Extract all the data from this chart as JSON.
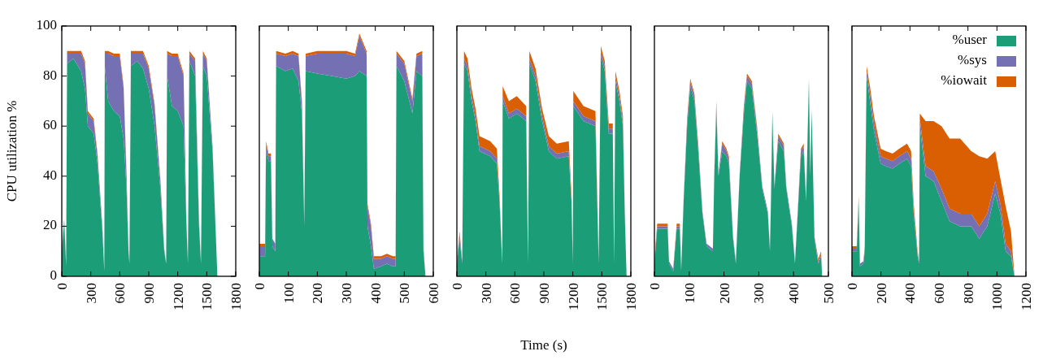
{
  "chart_data": [
    {
      "type": "area",
      "stacked": true,
      "ylabel": "CPU utilization %",
      "xlim": [
        0,
        1800
      ],
      "xticks": [
        0,
        300,
        600,
        900,
        1200,
        1500,
        1800
      ],
      "ylim": [
        0,
        100
      ],
      "yticks": [
        0,
        20,
        40,
        60,
        80,
        100
      ],
      "grid": false,
      "x": [
        0,
        25,
        45,
        55,
        120,
        200,
        240,
        270,
        330,
        370,
        420,
        440,
        445,
        480,
        540,
        600,
        640,
        670,
        690,
        700,
        715,
        780,
        840,
        900,
        960,
        1020,
        1060,
        1080,
        1090,
        1140,
        1200,
        1260,
        1290,
        1305,
        1320,
        1380,
        1420,
        1440,
        1460,
        1500,
        1560,
        1590,
        1610
      ],
      "series": [
        {
          "color": "#1b9e77",
          "values": [
            10,
            22,
            4,
            85,
            87,
            82,
            75,
            60,
            57,
            45,
            18,
            2,
            84,
            70,
            66,
            64,
            55,
            35,
            10,
            5,
            84,
            86,
            83,
            75,
            60,
            35,
            10,
            5,
            80,
            68,
            66,
            60,
            20,
            5,
            86,
            80,
            20,
            5,
            84,
            80,
            50,
            20,
            0
          ]
        },
        {
          "color": "#7570b3",
          "values": [
            1,
            1,
            1,
            4,
            2,
            7,
            10,
            5,
            5,
            3,
            2,
            0,
            5,
            19,
            22,
            24,
            20,
            5,
            1,
            0,
            5,
            3,
            6,
            8,
            8,
            3,
            1,
            0,
            9,
            20,
            22,
            20,
            2,
            0,
            3,
            6,
            2,
            0,
            5,
            6,
            2,
            1,
            0
          ]
        },
        {
          "color": "#d95f02",
          "values": [
            0,
            0,
            0,
            1,
            1,
            1,
            1,
            1,
            1,
            1,
            0,
            0,
            1,
            1,
            1,
            1,
            1,
            1,
            0,
            0,
            1,
            1,
            1,
            1,
            1,
            1,
            0,
            0,
            1,
            1,
            1,
            1,
            0,
            0,
            1,
            1,
            1,
            0,
            1,
            1,
            0,
            0,
            0
          ]
        }
      ]
    },
    {
      "type": "area",
      "stacked": true,
      "xlim": [
        0,
        600
      ],
      "xticks": [
        0,
        100,
        200,
        300,
        400,
        500,
        600
      ],
      "ylim": [
        0,
        100
      ],
      "tick_labels": "x",
      "grid": false,
      "x": [
        0,
        20,
        23,
        32,
        40,
        45,
        55,
        58,
        90,
        115,
        135,
        147,
        155,
        160,
        200,
        250,
        300,
        330,
        345,
        370,
        373,
        385,
        395,
        420,
        440,
        460,
        470,
        473,
        500,
        528,
        542,
        562,
        566,
        573
      ],
      "series": [
        {
          "color": "#1b9e77",
          "values": [
            8,
            8,
            50,
            46,
            46,
            12,
            10,
            84,
            82,
            83,
            78,
            65,
            20,
            82,
            81,
            80,
            79,
            80,
            82,
            80,
            20,
            12,
            3,
            4,
            5,
            4,
            4,
            84,
            78,
            65,
            82,
            80,
            10,
            0
          ]
        },
        {
          "color": "#7570b3",
          "values": [
            4,
            4,
            3,
            2,
            2,
            3,
            3,
            5,
            6,
            6,
            10,
            4,
            2,
            6,
            8,
            9,
            10,
            8,
            14,
            9,
            8,
            8,
            4,
            3,
            3,
            3,
            3,
            5,
            7,
            5,
            6,
            9,
            1,
            0
          ]
        },
        {
          "color": "#d95f02",
          "values": [
            1,
            1,
            1,
            1,
            1,
            0,
            0,
            1,
            1,
            1,
            1,
            1,
            0,
            1,
            1,
            1,
            1,
            1,
            1,
            1,
            1,
            1,
            1,
            1,
            1,
            1,
            1,
            1,
            1,
            1,
            1,
            1,
            1,
            0
          ]
        }
      ]
    },
    {
      "type": "area",
      "stacked": true,
      "xlabel": "Time (s)",
      "xlim": [
        0,
        1800
      ],
      "xticks": [
        0,
        300,
        600,
        900,
        1200,
        1500,
        1800
      ],
      "ylim": [
        0,
        100
      ],
      "tick_labels": "x",
      "grid": false,
      "x": [
        0,
        28,
        55,
        74,
        110,
        152,
        193,
        234,
        345,
        414,
        441,
        469,
        474,
        538,
        620,
        717,
        736,
        750,
        814,
        882,
        951,
        1034,
        1158,
        1186,
        1199,
        1205,
        1310,
        1434,
        1467,
        1489,
        1530,
        1572,
        1613,
        1627,
        1640,
        1682,
        1718,
        1737,
        1756
      ],
      "series": [
        {
          "color": "#1b9e77",
          "values": [
            5,
            15,
            5,
            85,
            82,
            70,
            62,
            50,
            48,
            45,
            30,
            5,
            70,
            63,
            65,
            62,
            5,
            85,
            78,
            62,
            50,
            47,
            48,
            30,
            5,
            68,
            62,
            60,
            5,
            88,
            82,
            57,
            57,
            5,
            78,
            70,
            60,
            25,
            0
          ]
        },
        {
          "color": "#7570b3",
          "values": [
            1,
            2,
            1,
            2,
            2,
            2,
            2,
            2,
            2,
            2,
            1,
            1,
            2,
            2,
            2,
            2,
            1,
            2,
            2,
            2,
            2,
            2,
            2,
            1,
            1,
            2,
            2,
            2,
            1,
            2,
            2,
            2,
            2,
            1,
            2,
            2,
            2,
            1,
            0
          ]
        },
        {
          "color": "#d95f02",
          "values": [
            0,
            1,
            0,
            3,
            3,
            3,
            3,
            4,
            4,
            4,
            2,
            0,
            4,
            5,
            5,
            4,
            0,
            3,
            3,
            3,
            4,
            4,
            4,
            2,
            0,
            4,
            4,
            4,
            0,
            2,
            2,
            2,
            2,
            0,
            2,
            2,
            2,
            1,
            0
          ]
        }
      ]
    },
    {
      "type": "area",
      "stacked": true,
      "xlim": [
        0,
        500
      ],
      "xticks": [
        0,
        100,
        200,
        300,
        400,
        500
      ],
      "ylim": [
        0,
        100
      ],
      "tick_labels": "x",
      "grid": false,
      "x": [
        0,
        8,
        38,
        42,
        54,
        64,
        73,
        77,
        84,
        94,
        103,
        115,
        126,
        138,
        150,
        168,
        172,
        178,
        184,
        195,
        207,
        214,
        226,
        234,
        245,
        257,
        266,
        280,
        295,
        310,
        326,
        332,
        335,
        339,
        345,
        356,
        372,
        379,
        395,
        404,
        410,
        421,
        429,
        436,
        444,
        448,
        452,
        460,
        471,
        479,
        482
      ],
      "series": [
        {
          "color": "#1b9e77",
          "values": [
            5,
            19,
            19,
            5,
            2,
            19,
            19,
            2,
            30,
            60,
            76,
            70,
            50,
            25,
            12,
            10,
            40,
            67,
            40,
            50,
            48,
            45,
            15,
            5,
            40,
            65,
            78,
            75,
            57,
            35,
            25,
            10,
            30,
            65,
            35,
            54,
            50,
            35,
            20,
            5,
            20,
            48,
            50,
            30,
            78,
            40,
            66,
            15,
            5,
            8,
            0
          ]
        },
        {
          "color": "#7570b3",
          "values": [
            1,
            1,
            1,
            1,
            1,
            1,
            1,
            1,
            1,
            2,
            2,
            2,
            2,
            1,
            1,
            1,
            1,
            2,
            1,
            3,
            2,
            2,
            1,
            1,
            1,
            2,
            2,
            2,
            2,
            1,
            1,
            1,
            1,
            1,
            1,
            2,
            2,
            1,
            1,
            1,
            1,
            2,
            2,
            1,
            1,
            1,
            1,
            1,
            1,
            1,
            0
          ]
        },
        {
          "color": "#d95f02",
          "values": [
            1,
            1,
            1,
            0,
            0,
            1,
            1,
            0,
            0,
            1,
            1,
            1,
            1,
            0,
            0,
            0,
            0,
            1,
            0,
            1,
            1,
            1,
            0,
            0,
            0,
            1,
            1,
            1,
            1,
            0,
            0,
            0,
            0,
            0,
            0,
            1,
            1,
            0,
            0,
            0,
            0,
            1,
            1,
            0,
            0,
            0,
            0,
            0,
            1,
            1,
            0
          ]
        }
      ]
    },
    {
      "type": "area",
      "stacked": true,
      "xlim": [
        0,
        1200
      ],
      "xticks": [
        0,
        200,
        400,
        600,
        800,
        1000,
        1200
      ],
      "ylim": [
        0,
        100
      ],
      "tick_labels": "x",
      "grid": false,
      "legend": "top right",
      "x": [
        0,
        5,
        33,
        46,
        55,
        79,
        88,
        101,
        124,
        152,
        198,
        234,
        280,
        326,
        380,
        408,
        426,
        453,
        463,
        468,
        508,
        563,
        618,
        673,
        746,
        823,
        878,
        933,
        988,
        1024,
        1060,
        1097,
        1121
      ],
      "series": [
        {
          "name": "%user",
          "color": "#1b9e77",
          "values": [
            10,
            10,
            10,
            30,
            4,
            5,
            10,
            80,
            70,
            58,
            45,
            44,
            43,
            45,
            47,
            44,
            25,
            8,
            5,
            60,
            40,
            38,
            30,
            22,
            20,
            20,
            15,
            20,
            33,
            25,
            10,
            8,
            0
          ]
        },
        {
          "name": "%sys",
          "color": "#7570b3",
          "values": [
            1,
            1,
            1,
            1,
            1,
            1,
            1,
            2,
            3,
            3,
            3,
            3,
            3,
            3,
            3,
            3,
            2,
            1,
            1,
            3,
            4,
            4,
            5,
            5,
            5,
            5,
            5,
            5,
            5,
            4,
            3,
            2,
            0
          ]
        },
        {
          "name": "%iowait",
          "color": "#d95f02",
          "values": [
            1,
            1,
            1,
            1,
            0,
            0,
            1,
            2,
            3,
            3,
            3,
            3,
            3,
            3,
            3,
            3,
            2,
            1,
            0,
            2,
            18,
            20,
            25,
            28,
            30,
            25,
            28,
            22,
            12,
            10,
            15,
            8,
            0
          ]
        }
      ]
    }
  ]
}
